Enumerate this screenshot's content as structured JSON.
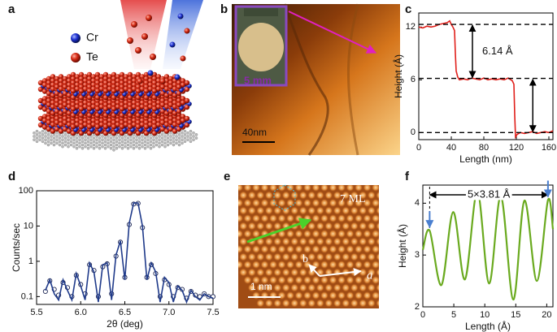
{
  "panel_labels": [
    "a",
    "b",
    "c",
    "d",
    "e",
    "f"
  ],
  "panel_a": {
    "legend": [
      "Cr",
      "Te"
    ]
  },
  "panel_b": {
    "inset_scale": "5 mm",
    "scale_bar": "40nm"
  },
  "panel_e": {
    "label": "7 ML",
    "scale_bar": "1 nm",
    "axis_a": "a",
    "axis_b": "b"
  },
  "chart_data": [
    {
      "type": "line",
      "xlabel": "Length (nm)",
      "ylabel": "Height (Å)",
      "color": "#e0201b",
      "x": [
        0,
        5,
        10,
        15,
        20,
        25,
        30,
        35,
        38,
        40,
        42,
        44,
        45,
        46,
        48,
        50,
        55,
        60,
        65,
        70,
        75,
        80,
        85,
        90,
        95,
        100,
        105,
        110,
        115,
        117,
        118,
        119,
        121,
        125,
        130,
        135,
        140,
        145,
        150,
        155,
        160,
        165
      ],
      "values": [
        12.0,
        11.9,
        12.1,
        12.0,
        12.1,
        12.3,
        12.4,
        12.5,
        12.7,
        12.3,
        12.0,
        11.6,
        9.0,
        7.0,
        6.3,
        6.0,
        6.1,
        6.0,
        6.2,
        6.1,
        6.0,
        6.2,
        6.0,
        6.1,
        6.0,
        6.1,
        6.0,
        6.2,
        5.9,
        5.5,
        2.0,
        -0.5,
        -0.2,
        0,
        -0.1,
        0,
        0.1,
        -0.1,
        0,
        0.1,
        0,
        0.2
      ],
      "xlim": [
        0,
        165
      ],
      "ylim": [
        -0.8,
        13.6
      ],
      "xticks": [
        0,
        40,
        80,
        120,
        160
      ],
      "yticks": [
        0,
        6,
        12
      ],
      "reference_lines": [
        12.3,
        6.16,
        0
      ],
      "annotation": "6.14 Å"
    },
    {
      "type": "line",
      "xlabel": "2θ (deg)",
      "ylabel": "Counts/sec",
      "log_y": true,
      "x": [
        5.6,
        5.65,
        5.7,
        5.75,
        5.8,
        5.85,
        5.9,
        5.95,
        6.0,
        6.05,
        6.1,
        6.15,
        6.2,
        6.25,
        6.3,
        6.35,
        6.4,
        6.45,
        6.5,
        6.55,
        6.6,
        6.65,
        6.7,
        6.75,
        6.8,
        6.85,
        6.9,
        6.95,
        7.0,
        7.05,
        7.1,
        7.15,
        7.2,
        7.25,
        7.3,
        7.35,
        7.4,
        7.45,
        7.5
      ],
      "series": [
        {
          "type": "scatter",
          "color": "#1b2452",
          "values": [
            0.14,
            0.28,
            0.16,
            0.11,
            0.25,
            0.18,
            0.1,
            0.4,
            0.22,
            0.12,
            0.8,
            0.55,
            0.1,
            0.7,
            0.85,
            0.12,
            1.4,
            3.5,
            0.35,
            11,
            42,
            44,
            9,
            0.35,
            0.8,
            0.45,
            0.1,
            0.3,
            0.22,
            0.1,
            0.18,
            0.16,
            0.09,
            0.14,
            0.11,
            0.1,
            0.12,
            0.1,
            0.1
          ]
        },
        {
          "type": "line",
          "color": "#1f3a8a",
          "values": [
            0.15,
            0.3,
            0.12,
            0.08,
            0.3,
            0.15,
            0.08,
            0.45,
            0.2,
            0.08,
            0.9,
            0.5,
            0.07,
            0.8,
            0.9,
            0.08,
            1.5,
            3.8,
            0.3,
            12,
            45,
            45,
            10,
            0.3,
            0.9,
            0.5,
            0.07,
            0.35,
            0.25,
            0.07,
            0.2,
            0.15,
            0.07,
            0.15,
            0.1,
            0.08,
            0.12,
            0.1,
            0.09
          ]
        }
      ],
      "xlim": [
        5.5,
        7.5
      ],
      "ylim": [
        0.06,
        100
      ],
      "xticks": [
        5.5,
        {
          "value": 6,
          "label": "6.0"
        },
        6.5,
        {
          "value": 7,
          "label": "7.0"
        },
        7.5
      ],
      "yticks": [
        0.1,
        1,
        10,
        100
      ]
    },
    {
      "type": "line",
      "xlabel": "Length (Å)",
      "ylabel": "Height (Å)",
      "color": "#6aaa1f",
      "smooth": true,
      "x": [
        0,
        1.1,
        3.0,
        4.9,
        6.8,
        8.8,
        10.7,
        12.6,
        14.6,
        16.4,
        18.4,
        20.2,
        21
      ],
      "values": [
        3.1,
        3.47,
        2.42,
        3.83,
        2.53,
        4.23,
        2.45,
        4.14,
        2.14,
        4.05,
        2.5,
        4.06,
        3.5
      ],
      "xlim": [
        0,
        21
      ],
      "ylim": [
        2,
        4.35
      ],
      "xticks": [
        0,
        5,
        10,
        15,
        20
      ],
      "yticks": [
        2,
        3,
        4
      ],
      "annotation": "5×3.81 Å"
    }
  ]
}
